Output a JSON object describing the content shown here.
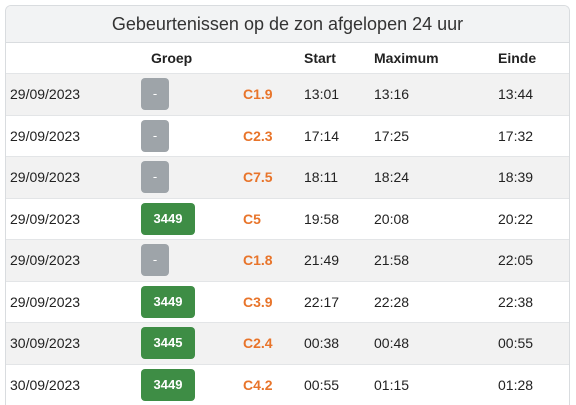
{
  "title": "Gebeurtenissen op de zon afgelopen 24 uur",
  "columns": {
    "date": "",
    "group": "Groep",
    "class": "",
    "start": "Start",
    "maximum": "Maximum",
    "end": "Einde"
  },
  "rows": [
    {
      "date": "29/09/2023",
      "group": "-",
      "group_type": "none",
      "class": "C1.9",
      "start": "13:01",
      "maximum": "13:16",
      "end": "13:44"
    },
    {
      "date": "29/09/2023",
      "group": "-",
      "group_type": "none",
      "class": "C2.3",
      "start": "17:14",
      "maximum": "17:25",
      "end": "17:32"
    },
    {
      "date": "29/09/2023",
      "group": "-",
      "group_type": "none",
      "class": "C7.5",
      "start": "18:11",
      "maximum": "18:24",
      "end": "18:39"
    },
    {
      "date": "29/09/2023",
      "group": "3449",
      "group_type": "num",
      "class": "C5",
      "start": "19:58",
      "maximum": "20:08",
      "end": "20:22"
    },
    {
      "date": "29/09/2023",
      "group": "-",
      "group_type": "none",
      "class": "C1.8",
      "start": "21:49",
      "maximum": "21:58",
      "end": "22:05"
    },
    {
      "date": "29/09/2023",
      "group": "3449",
      "group_type": "num",
      "class": "C3.9",
      "start": "22:17",
      "maximum": "22:28",
      "end": "22:38"
    },
    {
      "date": "30/09/2023",
      "group": "3445",
      "group_type": "num",
      "class": "C2.4",
      "start": "00:38",
      "maximum": "00:48",
      "end": "00:55"
    },
    {
      "date": "30/09/2023",
      "group": "3449",
      "group_type": "num",
      "class": "C4.2",
      "start": "00:55",
      "maximum": "01:15",
      "end": "01:28"
    }
  ],
  "colors": {
    "group_badge": "#3e8d45",
    "no_group_badge": "#9ea4a9",
    "flare_class": "#e8742a"
  }
}
